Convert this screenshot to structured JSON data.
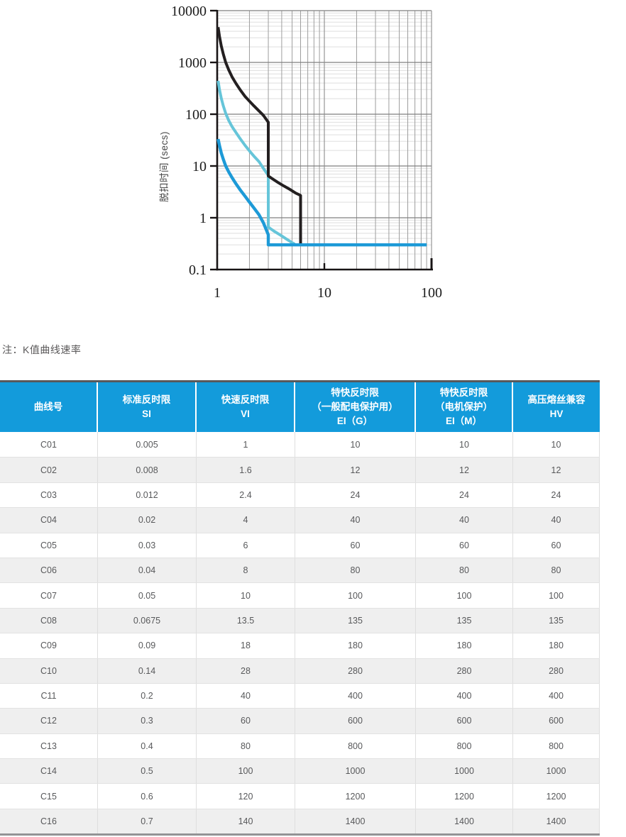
{
  "note": "注：K值曲线速率",
  "chart_data": {
    "type": "line",
    "title": "",
    "xlabel": "",
    "ylabel": "脱扣时间 (secs)",
    "x_scale": "log",
    "y_scale": "log",
    "xlim": [
      1,
      100
    ],
    "ylim": [
      0.1,
      10000
    ],
    "grid": "log major and minor, both axes",
    "legend_position": "none",
    "x_ticks": [
      {
        "value": 1,
        "label": "1"
      },
      {
        "value": 10,
        "label": "10"
      },
      {
        "value": 100,
        "label": "100"
      }
    ],
    "y_ticks": [
      {
        "value": 10000,
        "label": "10000"
      },
      {
        "value": 1000,
        "label": "1000"
      },
      {
        "value": 100,
        "label": "100"
      },
      {
        "value": 10,
        "label": "10"
      },
      {
        "value": 1,
        "label": "1"
      },
      {
        "value": 0.1,
        "label": "0.1"
      }
    ],
    "series": [
      {
        "name": "light-blue-curve",
        "color": "#66c5d9",
        "width": 4,
        "points": [
          [
            1.02,
            440
          ],
          [
            1.05,
            300
          ],
          [
            1.09,
            205
          ],
          [
            1.14,
            145
          ],
          [
            1.2,
            104
          ],
          [
            1.28,
            76
          ],
          [
            1.38,
            57
          ],
          [
            1.5,
            44
          ],
          [
            1.65,
            33
          ],
          [
            1.82,
            25
          ],
          [
            2.0,
            19.5
          ],
          [
            2.2,
            15.5
          ],
          [
            2.45,
            12.2
          ],
          [
            2.7,
            9.0
          ],
          [
            3.0,
            6.6
          ],
          [
            3.0,
            0.66
          ],
          [
            3.4,
            0.55
          ],
          [
            3.9,
            0.46
          ],
          [
            4.5,
            0.38
          ],
          [
            5.0,
            0.33
          ],
          [
            5.3,
            0.31
          ]
        ]
      },
      {
        "name": "black-curve",
        "color": "#231f20",
        "width": 4,
        "points": [
          [
            1.02,
            4800
          ],
          [
            1.05,
            3200
          ],
          [
            1.09,
            2100
          ],
          [
            1.14,
            1450
          ],
          [
            1.2,
            1000
          ],
          [
            1.28,
            720
          ],
          [
            1.38,
            520
          ],
          [
            1.5,
            390
          ],
          [
            1.65,
            290
          ],
          [
            1.82,
            220
          ],
          [
            2.0,
            178
          ],
          [
            2.2,
            145
          ],
          [
            2.45,
            116
          ],
          [
            2.7,
            95
          ],
          [
            3.0,
            70
          ],
          [
            3.0,
            6.4
          ],
          [
            3.3,
            5.6
          ],
          [
            3.7,
            4.8
          ],
          [
            4.2,
            4.1
          ],
          [
            4.8,
            3.5
          ],
          [
            5.4,
            3.0
          ],
          [
            6.0,
            2.7
          ],
          [
            6.0,
            0.31
          ]
        ]
      },
      {
        "name": "blue-curve",
        "color": "#1d9ad7",
        "width": 4.4,
        "points": [
          [
            1.02,
            33
          ],
          [
            1.05,
            25
          ],
          [
            1.09,
            18
          ],
          [
            1.14,
            13.5
          ],
          [
            1.2,
            10
          ],
          [
            1.28,
            7.7
          ],
          [
            1.38,
            5.9
          ],
          [
            1.5,
            4.5
          ],
          [
            1.65,
            3.4
          ],
          [
            1.82,
            2.6
          ],
          [
            2.0,
            2.0
          ],
          [
            2.2,
            1.55
          ],
          [
            2.45,
            1.15
          ],
          [
            2.7,
            0.8
          ],
          [
            3.0,
            0.47
          ],
          [
            3.0,
            0.3
          ],
          [
            90,
            0.3
          ]
        ]
      }
    ]
  },
  "table": {
    "header_bg": "#139bdb",
    "row_stripe": "#efefef",
    "cell_text_color": "#58595b",
    "headers": [
      {
        "lines": [
          "曲线号"
        ]
      },
      {
        "lines": [
          "标准反时限",
          "SI"
        ]
      },
      {
        "lines": [
          "快速反时限",
          "VI"
        ]
      },
      {
        "lines": [
          "特快反时限",
          "（一般配电保护用）",
          "EI（G）"
        ]
      },
      {
        "lines": [
          "特快反时限",
          "（电机保护）",
          "EI（M）"
        ]
      },
      {
        "lines": [
          "高压熔丝兼容",
          "HV"
        ]
      }
    ],
    "rows": [
      [
        "C01",
        "0.005",
        "1",
        "10",
        "10",
        "10"
      ],
      [
        "C02",
        "0.008",
        "1.6",
        "12",
        "12",
        "12"
      ],
      [
        "C03",
        "0.012",
        "2.4",
        "24",
        "24",
        "24"
      ],
      [
        "C04",
        "0.02",
        "4",
        "40",
        "40",
        "40"
      ],
      [
        "C05",
        "0.03",
        "6",
        "60",
        "60",
        "60"
      ],
      [
        "C06",
        "0.04",
        "8",
        "80",
        "80",
        "80"
      ],
      [
        "C07",
        "0.05",
        "10",
        "100",
        "100",
        "100"
      ],
      [
        "C08",
        "0.0675",
        "13.5",
        "135",
        "135",
        "135"
      ],
      [
        "C09",
        "0.09",
        "18",
        "180",
        "180",
        "180"
      ],
      [
        "C10",
        "0.14",
        "28",
        "280",
        "280",
        "280"
      ],
      [
        "C11",
        "0.2",
        "40",
        "400",
        "400",
        "400"
      ],
      [
        "C12",
        "0.3",
        "60",
        "600",
        "600",
        "600"
      ],
      [
        "C13",
        "0.4",
        "80",
        "800",
        "800",
        "800"
      ],
      [
        "C14",
        "0.5",
        "100",
        "1000",
        "1000",
        "1000"
      ],
      [
        "C15",
        "0.6",
        "120",
        "1200",
        "1200",
        "1200"
      ],
      [
        "C16",
        "0.7",
        "140",
        "1400",
        "1400",
        "1400"
      ]
    ]
  }
}
